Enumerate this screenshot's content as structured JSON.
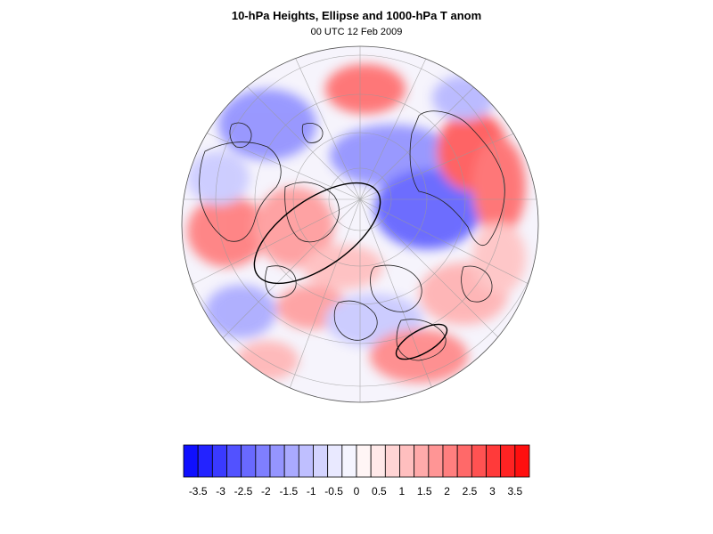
{
  "figure": {
    "title": "10-hPa Heights, Ellipse and 1000-hPa T anom",
    "subtitle": "00 UTC 12 Feb 2009"
  },
  "colorbar": {
    "colors": [
      "#0f0fff",
      "#2323ff",
      "#3a3aff",
      "#5252ff",
      "#6969ff",
      "#7f7fff",
      "#9595ff",
      "#aaaaff",
      "#bfbfff",
      "#d4d4ff",
      "#e9e9ff",
      "#f5f5ff",
      "#fff5f5",
      "#ffe9e9",
      "#ffd4d4",
      "#ffbfbf",
      "#ffaaaa",
      "#ff9595",
      "#ff7f7f",
      "#ff6969",
      "#ff5252",
      "#ff3a3a",
      "#ff2323",
      "#ff0f0f"
    ],
    "tick_labels": [
      "-3.5",
      "-3",
      "-2.5",
      "-2",
      "-1.5",
      "-1",
      "-0.5",
      "0",
      "0.5",
      "1",
      "1.5",
      "2",
      "2.5",
      "3",
      "3.5"
    ]
  }
}
